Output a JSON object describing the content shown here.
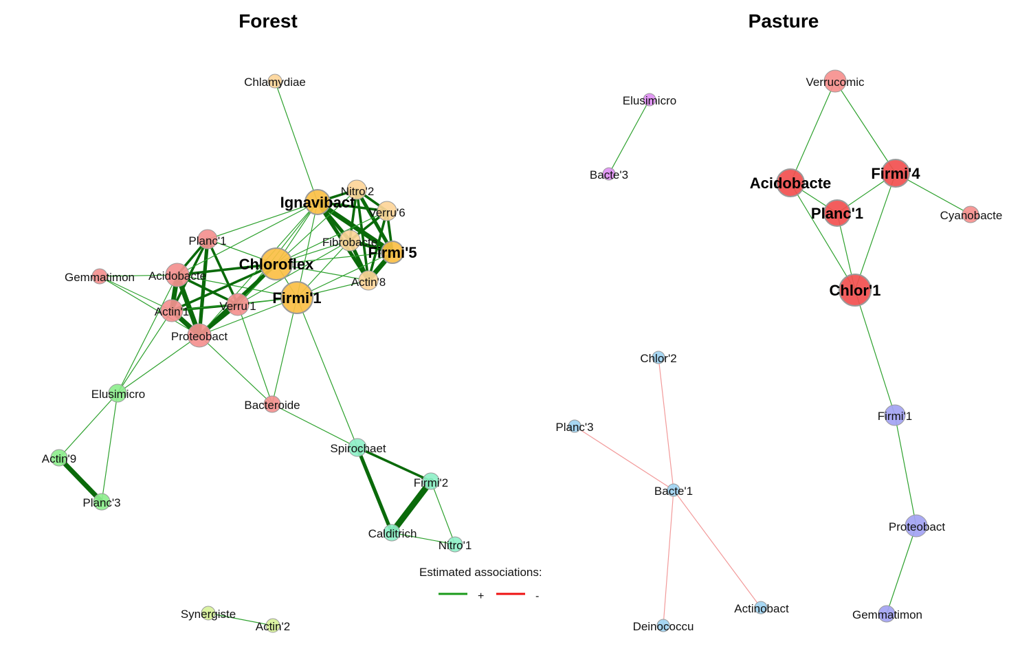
{
  "panels": [
    {
      "title": "Forest",
      "nodes": [
        {
          "id": "chlamydiae",
          "label": "Chlamydiae",
          "color": "#fdd599",
          "hub": false
        },
        {
          "id": "ignavibact",
          "label": "Ignavibact",
          "color": "#fbbf45",
          "hub": true
        },
        {
          "id": "nitro2",
          "label": "Nitro'2",
          "color": "#fdd599",
          "hub": false
        },
        {
          "id": "verru6",
          "label": "Verru'6",
          "color": "#fdd599",
          "hub": false
        },
        {
          "id": "fibrobacte",
          "label": "Fibrobacte",
          "color": "#fdd599",
          "hub": false
        },
        {
          "id": "firmi5",
          "label": "Firmi'5",
          "color": "#fbbf45",
          "hub": true
        },
        {
          "id": "actin8",
          "label": "Actin'8",
          "color": "#fdd599",
          "hub": false
        },
        {
          "id": "chloroflex",
          "label": "Chloroflex",
          "color": "#fbbf45",
          "hub": true
        },
        {
          "id": "firmi1",
          "label": "Firmi'1",
          "color": "#fbbf45",
          "hub": true
        },
        {
          "id": "planc1",
          "label": "Planc'1",
          "color": "#f4908f",
          "hub": false
        },
        {
          "id": "gemmatimon",
          "label": "Gemmatimon",
          "color": "#f4908f",
          "hub": false
        },
        {
          "id": "acidobacte",
          "label": "Acidobacte",
          "color": "#f4908f",
          "hub": false
        },
        {
          "id": "actin1",
          "label": "Actin'1",
          "color": "#f4908f",
          "hub": false
        },
        {
          "id": "verru1",
          "label": "Verru'1",
          "color": "#f4908f",
          "hub": false
        },
        {
          "id": "proteobact",
          "label": "Proteobact",
          "color": "#f4908f",
          "hub": false
        },
        {
          "id": "bacteroide",
          "label": "Bacteroide",
          "color": "#f4908f",
          "hub": false
        },
        {
          "id": "elusimicro",
          "label": "Elusimicro",
          "color": "#8eee8e",
          "hub": false
        },
        {
          "id": "actin9",
          "label": "Actin'9",
          "color": "#8eee8e",
          "hub": false
        },
        {
          "id": "planc3",
          "label": "Planc'3",
          "color": "#8eee8e",
          "hub": false
        },
        {
          "id": "spirochaet",
          "label": "Spirochaet",
          "color": "#8ff0c8",
          "hub": false
        },
        {
          "id": "firmi2",
          "label": "Firmi'2",
          "color": "#8ff0c8",
          "hub": false
        },
        {
          "id": "calditrich",
          "label": "Calditrich",
          "color": "#8ff0c8",
          "hub": false
        },
        {
          "id": "nitro1",
          "label": "Nitro'1",
          "color": "#8ff0c8",
          "hub": false
        },
        {
          "id": "synergiste",
          "label": "Synergiste",
          "color": "#d8f29a",
          "hub": false
        },
        {
          "id": "actin2",
          "label": "Actin'2",
          "color": "#d8f29a",
          "hub": false
        }
      ],
      "edges": [
        {
          "source": "chlamydiae",
          "target": "ignavibact",
          "sign": "+",
          "strength": 1
        },
        {
          "source": "ignavibact",
          "target": "nitro2",
          "sign": "+",
          "strength": 3
        },
        {
          "source": "ignavibact",
          "target": "verru6",
          "sign": "+",
          "strength": 3
        },
        {
          "source": "ignavibact",
          "target": "fibrobacte",
          "sign": "+",
          "strength": 4
        },
        {
          "source": "ignavibact",
          "target": "firmi5",
          "sign": "+",
          "strength": 5
        },
        {
          "source": "ignavibact",
          "target": "actin8",
          "sign": "+",
          "strength": 4
        },
        {
          "source": "nitro2",
          "target": "verru6",
          "sign": "+",
          "strength": 3
        },
        {
          "source": "nitro2",
          "target": "fibrobacte",
          "sign": "+",
          "strength": 3
        },
        {
          "source": "nitro2",
          "target": "firmi5",
          "sign": "+",
          "strength": 4
        },
        {
          "source": "nitro2",
          "target": "actin8",
          "sign": "+",
          "strength": 3
        },
        {
          "source": "verru6",
          "target": "fibrobacte",
          "sign": "+",
          "strength": 3
        },
        {
          "source": "verru6",
          "target": "firmi5",
          "sign": "+",
          "strength": 3
        },
        {
          "source": "verru6",
          "target": "actin8",
          "sign": "+",
          "strength": 3
        },
        {
          "source": "fibrobacte",
          "target": "firmi5",
          "sign": "+",
          "strength": 4
        },
        {
          "source": "fibrobacte",
          "target": "actin8",
          "sign": "+",
          "strength": 4
        },
        {
          "source": "firmi5",
          "target": "actin8",
          "sign": "+",
          "strength": 5
        },
        {
          "source": "chloroflex",
          "target": "ignavibact",
          "sign": "+",
          "strength": 1
        },
        {
          "source": "chloroflex",
          "target": "nitro2",
          "sign": "+",
          "strength": 1
        },
        {
          "source": "chloroflex",
          "target": "fibrobacte",
          "sign": "+",
          "strength": 1
        },
        {
          "source": "chloroflex",
          "target": "firmi5",
          "sign": "+",
          "strength": 1
        },
        {
          "source": "chloroflex",
          "target": "actin8",
          "sign": "+",
          "strength": 1
        },
        {
          "source": "chloroflex",
          "target": "verru6",
          "sign": "+",
          "strength": 1
        },
        {
          "source": "firmi1",
          "target": "ignavibact",
          "sign": "+",
          "strength": 1
        },
        {
          "source": "firmi1",
          "target": "fibrobacte",
          "sign": "+",
          "strength": 1
        },
        {
          "source": "firmi1",
          "target": "firmi5",
          "sign": "+",
          "strength": 1
        },
        {
          "source": "firmi1",
          "target": "actin8",
          "sign": "+",
          "strength": 1
        },
        {
          "source": "chloroflex",
          "target": "firmi1",
          "sign": "+",
          "strength": 1
        },
        {
          "source": "planc1",
          "target": "ignavibact",
          "sign": "+",
          "strength": 1
        },
        {
          "source": "planc1",
          "target": "chloroflex",
          "sign": "+",
          "strength": 1
        },
        {
          "source": "planc1",
          "target": "acidobacte",
          "sign": "+",
          "strength": 3
        },
        {
          "source": "planc1",
          "target": "actin1",
          "sign": "+",
          "strength": 3
        },
        {
          "source": "planc1",
          "target": "proteobact",
          "sign": "+",
          "strength": 4
        },
        {
          "source": "planc1",
          "target": "verru1",
          "sign": "+",
          "strength": 3
        },
        {
          "source": "gemmatimon",
          "target": "acidobacte",
          "sign": "+",
          "strength": 1
        },
        {
          "source": "gemmatimon",
          "target": "actin1",
          "sign": "+",
          "strength": 1
        },
        {
          "source": "gemmatimon",
          "target": "proteobact",
          "sign": "+",
          "strength": 1
        },
        {
          "source": "acidobacte",
          "target": "actin1",
          "sign": "+",
          "strength": 5
        },
        {
          "source": "acidobacte",
          "target": "proteobact",
          "sign": "+",
          "strength": 5
        },
        {
          "source": "acidobacte",
          "target": "verru1",
          "sign": "+",
          "strength": 3
        },
        {
          "source": "acidobacte",
          "target": "chloroflex",
          "sign": "+",
          "strength": 3
        },
        {
          "source": "acidobacte",
          "target": "ignavibact",
          "sign": "+",
          "strength": 1
        },
        {
          "source": "acidobacte",
          "target": "firmi1",
          "sign": "+",
          "strength": 1
        },
        {
          "source": "actin1",
          "target": "proteobact",
          "sign": "+",
          "strength": 5
        },
        {
          "source": "actin1",
          "target": "verru1",
          "sign": "+",
          "strength": 3
        },
        {
          "source": "actin1",
          "target": "chloroflex",
          "sign": "+",
          "strength": 3
        },
        {
          "source": "actin1",
          "target": "firmi1",
          "sign": "+",
          "strength": 1
        },
        {
          "source": "verru1",
          "target": "proteobact",
          "sign": "+",
          "strength": 4
        },
        {
          "source": "verru1",
          "target": "chloroflex",
          "sign": "+",
          "strength": 2
        },
        {
          "source": "verru1",
          "target": "firmi1",
          "sign": "+",
          "strength": 1
        },
        {
          "source": "verru1",
          "target": "ignavibact",
          "sign": "+",
          "strength": 1
        },
        {
          "source": "verru1",
          "target": "fibrobacte",
          "sign": "+",
          "strength": 1
        },
        {
          "source": "proteobact",
          "target": "chloroflex",
          "sign": "+",
          "strength": 4
        },
        {
          "source": "proteobact",
          "target": "ignavibact",
          "sign": "+",
          "strength": 1
        },
        {
          "source": "proteobact",
          "target": "firmi1",
          "sign": "+",
          "strength": 1
        },
        {
          "source": "proteobact",
          "target": "elusimicro",
          "sign": "+",
          "strength": 1
        },
        {
          "source": "proteobact",
          "target": "bacteroide",
          "sign": "+",
          "strength": 1
        },
        {
          "source": "verru1",
          "target": "bacteroide",
          "sign": "+",
          "strength": 1
        },
        {
          "source": "firmi1",
          "target": "bacteroide",
          "sign": "+",
          "strength": 1
        },
        {
          "source": "acidobacte",
          "target": "elusimicro",
          "sign": "+",
          "strength": 1
        },
        {
          "source": "actin1",
          "target": "elusimicro",
          "sign": "+",
          "strength": 1
        },
        {
          "source": "elusimicro",
          "target": "actin9",
          "sign": "+",
          "strength": 1
        },
        {
          "source": "elusimicro",
          "target": "planc3",
          "sign": "+",
          "strength": 1
        },
        {
          "source": "actin9",
          "target": "planc3",
          "sign": "+",
          "strength": 5
        },
        {
          "source": "bacteroide",
          "target": "spirochaet",
          "sign": "+",
          "strength": 1
        },
        {
          "source": "firmi1",
          "target": "spirochaet",
          "sign": "+",
          "strength": 1
        },
        {
          "source": "spirochaet",
          "target": "firmi2",
          "sign": "+",
          "strength": 3
        },
        {
          "source": "spirochaet",
          "target": "calditrich",
          "sign": "+",
          "strength": 4
        },
        {
          "source": "firmi2",
          "target": "calditrich",
          "sign": "+",
          "strength": 6
        },
        {
          "source": "firmi2",
          "target": "nitro1",
          "sign": "+",
          "strength": 1
        },
        {
          "source": "calditrich",
          "target": "nitro1",
          "sign": "+",
          "strength": 1
        },
        {
          "source": "synergiste",
          "target": "actin2",
          "sign": "+",
          "strength": 1
        }
      ]
    },
    {
      "title": "Pasture",
      "nodes": [
        {
          "id": "p_elusimicro",
          "label": "Elusimicro",
          "color": "#df8ff3",
          "hub": false
        },
        {
          "id": "p_bacte3",
          "label": "Bacte'3",
          "color": "#df8ff3",
          "hub": false
        },
        {
          "id": "p_verrucomic",
          "label": "Verrucomic",
          "color": "#f6908e",
          "hub": false
        },
        {
          "id": "p_acidobacte",
          "label": "Acidobacte",
          "color": "#f24f4f",
          "hub": true
        },
        {
          "id": "p_firmi4",
          "label": "Firmi'4",
          "color": "#f24f4f",
          "hub": true
        },
        {
          "id": "p_planc1",
          "label": "Planc'1",
          "color": "#f24f4f",
          "hub": true
        },
        {
          "id": "p_cyanobacte",
          "label": "Cyanobacte",
          "color": "#f6908e",
          "hub": false
        },
        {
          "id": "p_chlor1",
          "label": "Chlor'1",
          "color": "#f24f4f",
          "hub": true
        },
        {
          "id": "p_firmi1",
          "label": "Firmi'1",
          "color": "#a3a3f3",
          "hub": false
        },
        {
          "id": "p_proteobact",
          "label": "Proteobact",
          "color": "#a3a3f3",
          "hub": false
        },
        {
          "id": "p_gemmatimon",
          "label": "Gemmatimon",
          "color": "#a3a3f3",
          "hub": false
        },
        {
          "id": "p_chlor2",
          "label": "Chlor'2",
          "color": "#9fd4f2",
          "hub": false
        },
        {
          "id": "p_planc3",
          "label": "Planc'3",
          "color": "#9fd4f2",
          "hub": false
        },
        {
          "id": "p_bacte1",
          "label": "Bacte'1",
          "color": "#9fd4f2",
          "hub": false
        },
        {
          "id": "p_actinobact",
          "label": "Actinobact",
          "color": "#9fd4f2",
          "hub": false
        },
        {
          "id": "p_deinococcu",
          "label": "Deinococcu",
          "color": "#9fd4f2",
          "hub": false
        }
      ],
      "edges": [
        {
          "source": "p_elusimicro",
          "target": "p_bacte3",
          "sign": "+",
          "strength": 1
        },
        {
          "source": "p_verrucomic",
          "target": "p_acidobacte",
          "sign": "+",
          "strength": 1
        },
        {
          "source": "p_verrucomic",
          "target": "p_firmi4",
          "sign": "+",
          "strength": 1
        },
        {
          "source": "p_acidobacte",
          "target": "p_planc1",
          "sign": "+",
          "strength": 1
        },
        {
          "source": "p_acidobacte",
          "target": "p_chlor1",
          "sign": "+",
          "strength": 1
        },
        {
          "source": "p_firmi4",
          "target": "p_planc1",
          "sign": "+",
          "strength": 1
        },
        {
          "source": "p_firmi4",
          "target": "p_chlor1",
          "sign": "+",
          "strength": 1
        },
        {
          "source": "p_firmi4",
          "target": "p_cyanobacte",
          "sign": "+",
          "strength": 1
        },
        {
          "source": "p_planc1",
          "target": "p_chlor1",
          "sign": "+",
          "strength": 1
        },
        {
          "source": "p_chlor1",
          "target": "p_firmi1",
          "sign": "+",
          "strength": 1
        },
        {
          "source": "p_firmi1",
          "target": "p_proteobact",
          "sign": "+",
          "strength": 1
        },
        {
          "source": "p_proteobact",
          "target": "p_gemmatimon",
          "sign": "+",
          "strength": 1
        },
        {
          "source": "p_chlor2",
          "target": "p_bacte1",
          "sign": "-",
          "strength": 1
        },
        {
          "source": "p_planc3",
          "target": "p_bacte1",
          "sign": "-",
          "strength": 1
        },
        {
          "source": "p_bacte1",
          "target": "p_actinobact",
          "sign": "-",
          "strength": 1
        },
        {
          "source": "p_bacte1",
          "target": "p_deinococcu",
          "sign": "-",
          "strength": 1
        }
      ]
    }
  ],
  "legend": {
    "title": "Estimated associations:",
    "items": [
      {
        "label": "+",
        "color": "#1a9a1a"
      },
      {
        "label": "-",
        "color": "#ee1111"
      }
    ]
  },
  "colors": {
    "positive_thin": "#2ca02c",
    "positive_thick": "#0a6a0a",
    "negative": "#f29a9a",
    "node_stroke": "#9a9a9a"
  }
}
